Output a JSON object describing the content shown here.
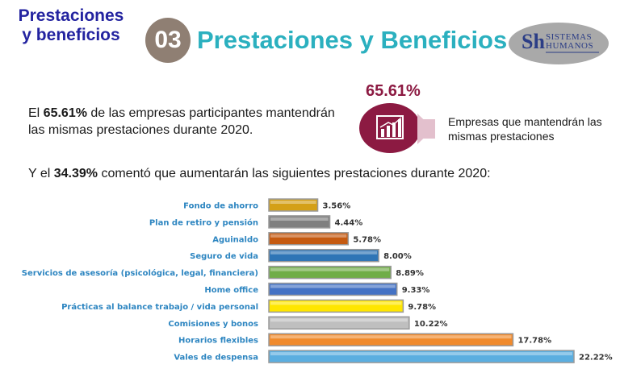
{
  "header": {
    "corner_title_line1": "Prestaciones",
    "corner_title_line2": "y beneficios",
    "section_number": "03",
    "title": "Prestaciones y Beneficios",
    "logo": {
      "mark": "Sh",
      "line1": "SISTEMAS",
      "line2": "HUMANOS"
    }
  },
  "intro": {
    "prefix": "El ",
    "percent": "65.61%",
    "suffix": " de las empresas participantes mantendrán las mismas prestaciones durante 2020."
  },
  "stat": {
    "value": "65.61%",
    "icon": "bar-chart-growth-icon",
    "caption": "Empresas que mantendrán las mismas prestaciones",
    "circle_color": "#8c1a42"
  },
  "second_line": {
    "prefix": "Y el ",
    "percent": "34.39%",
    "suffix": " comentó que aumentarán las siguientes prestaciones durante 2020:"
  },
  "chart_data": {
    "type": "bar",
    "orientation": "horizontal",
    "title": "",
    "xlim": [
      0,
      22.22
    ],
    "categories": [
      "Fondo de ahorro",
      "Plan de retiro y pensión",
      "Aguinaldo",
      "Seguro de vida",
      "Servicios de asesoría (psicológica, legal, financiera)",
      "Home office",
      "Prácticas al balance trabajo / vida personal",
      "Comisiones y bonos",
      "Horarios flexibles",
      "Vales de despensa"
    ],
    "values": [
      3.56,
      4.44,
      5.78,
      8.0,
      8.89,
      9.33,
      9.78,
      10.22,
      17.78,
      22.22
    ],
    "value_labels": [
      "3.56%",
      "4.44%",
      "5.78%",
      "8.00%",
      "8.89%",
      "9.33%",
      "9.78%",
      "10.22%",
      "17.78%",
      "22.22%"
    ],
    "colors": [
      "#d4a017",
      "#7f7f7f",
      "#c55a11",
      "#2e75b6",
      "#70ad47",
      "#4472c4",
      "#ffe600",
      "#bfbfbf",
      "#f08a2c",
      "#5baee0"
    ]
  }
}
